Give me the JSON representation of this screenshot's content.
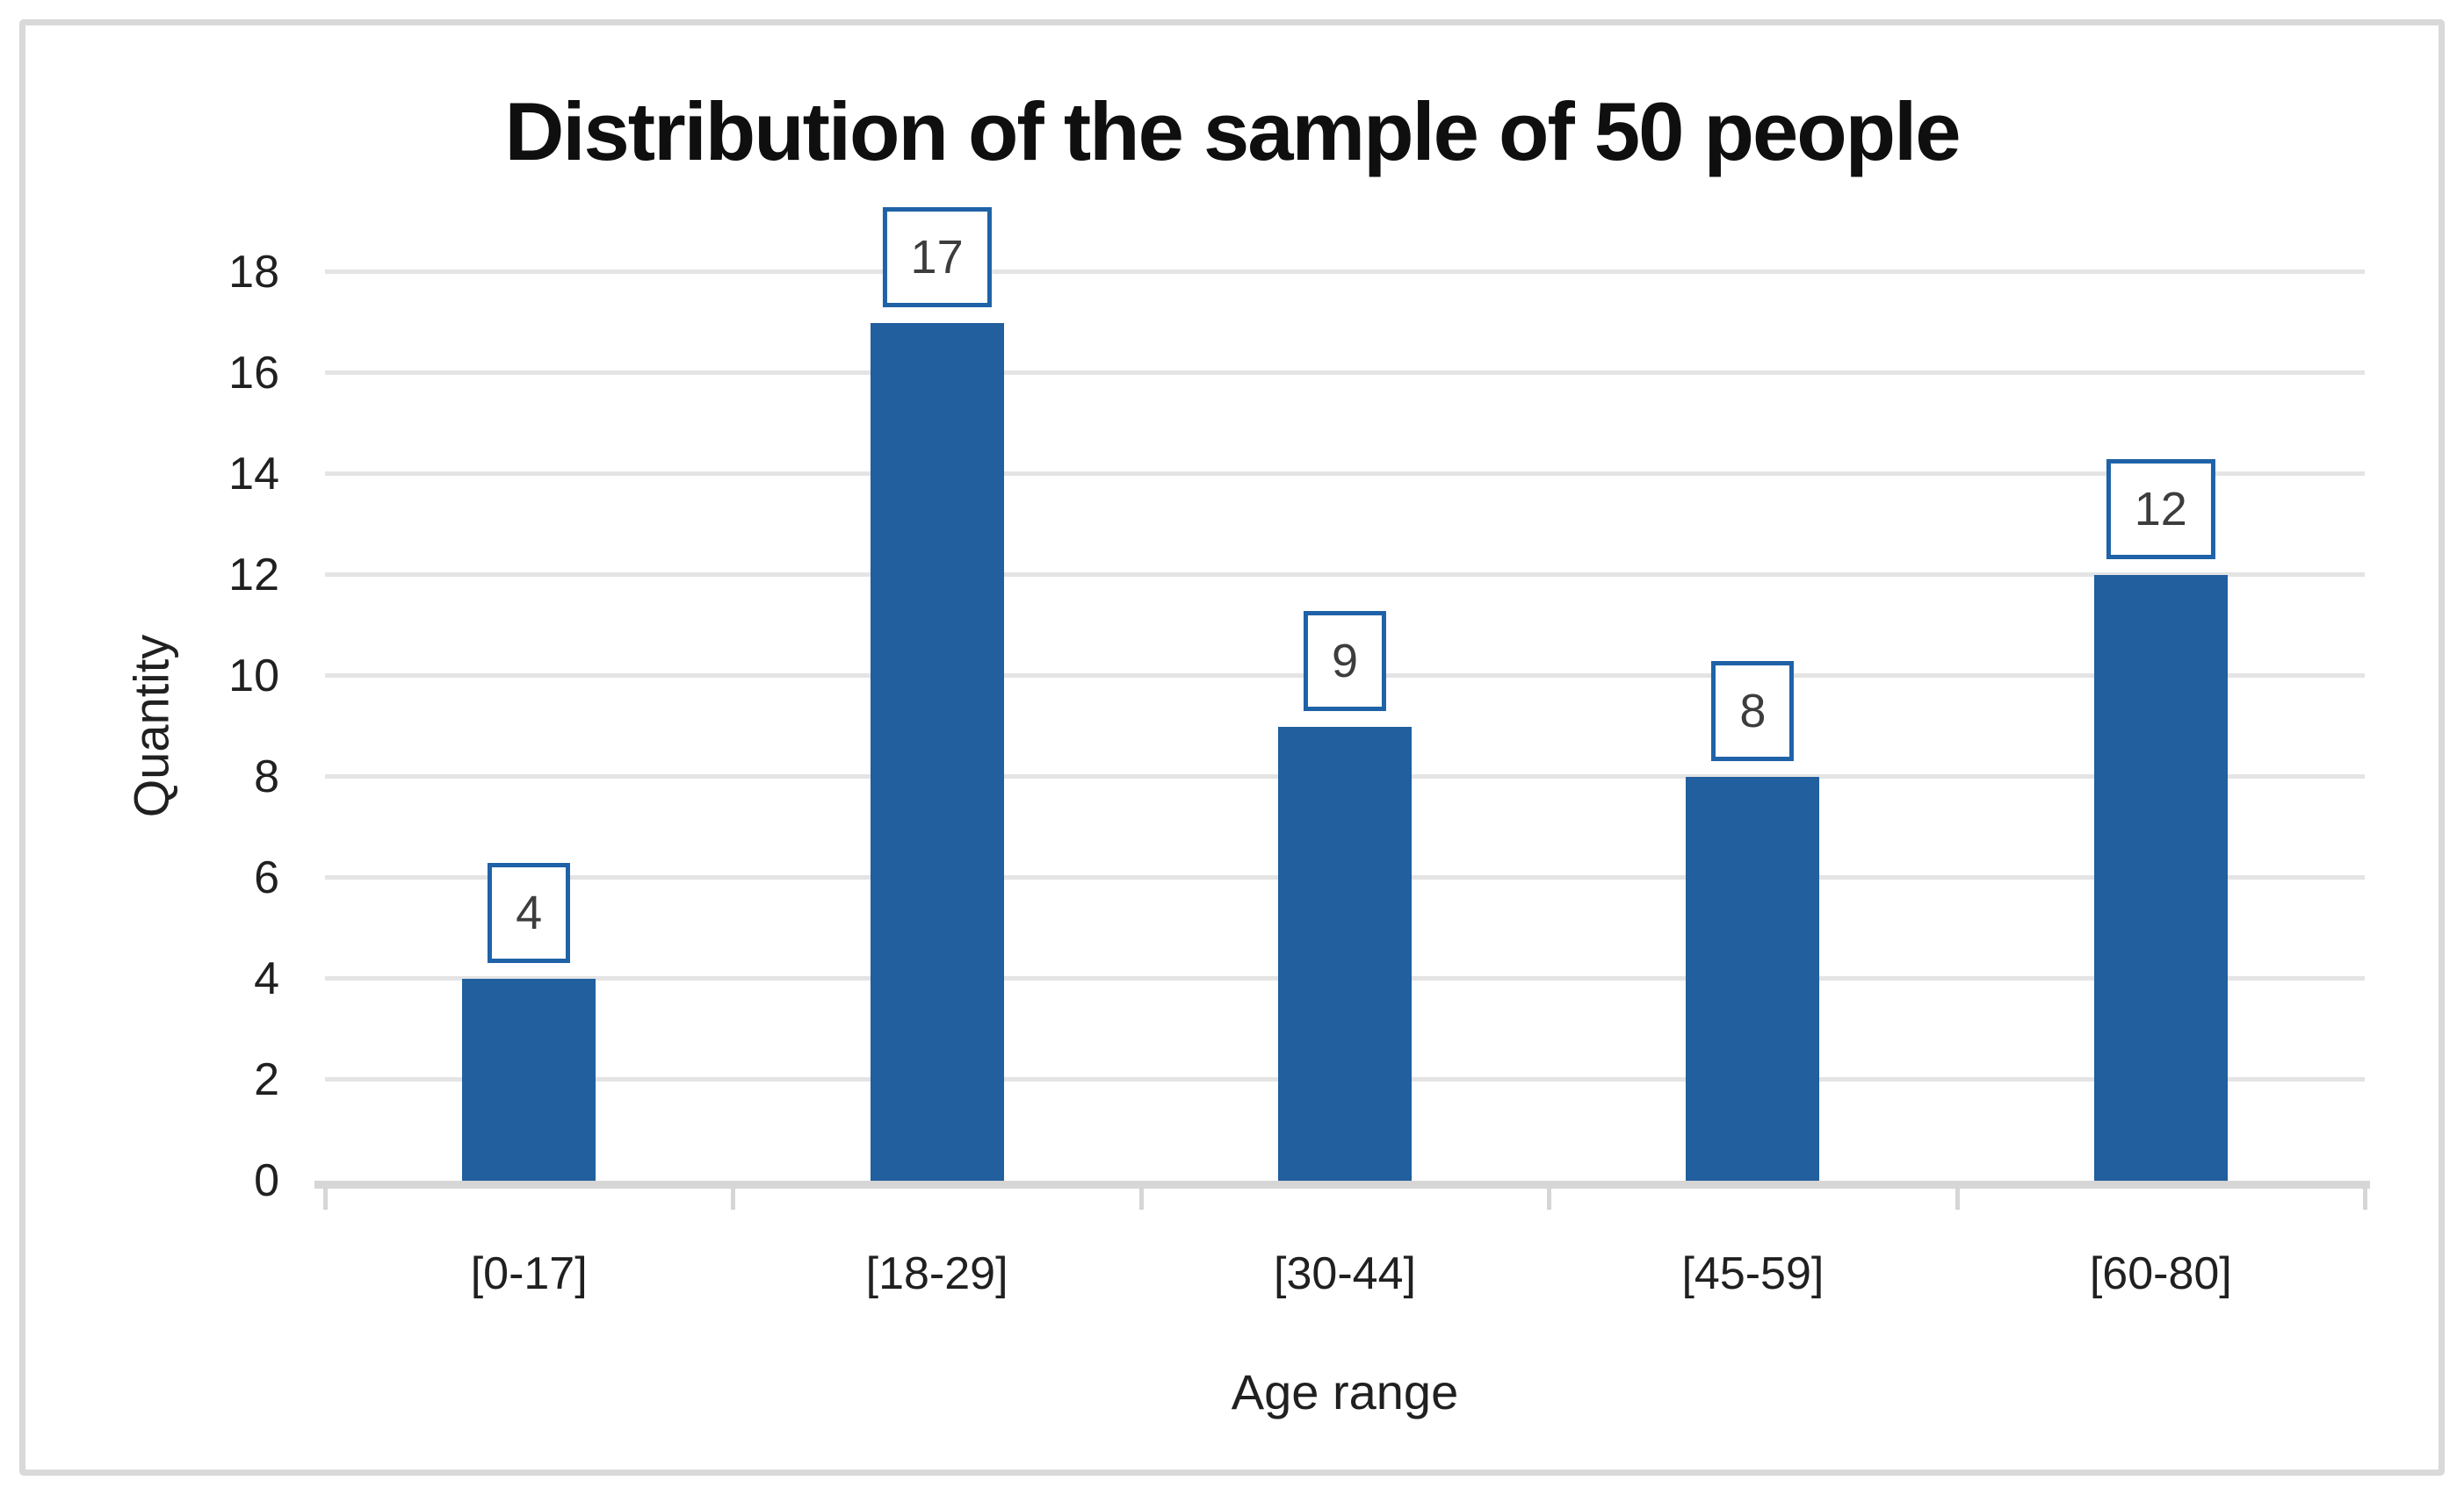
{
  "chart_data": {
    "type": "bar",
    "title": "Distribution of the sample of 50 people",
    "xlabel": "Age range",
    "ylabel": "Quantity",
    "categories": [
      "[0-17]",
      "[18-29]",
      "[30-44]",
      "[45-59]",
      "[60-80]"
    ],
    "values": [
      4,
      17,
      9,
      8,
      12
    ],
    "data_labels": [
      "4",
      "17",
      "9",
      "8",
      "12"
    ],
    "ylim": [
      0,
      18
    ],
    "yticks": [
      0,
      2,
      4,
      6,
      8,
      10,
      12,
      14,
      16,
      18
    ],
    "grid": true,
    "legend": "none",
    "style": {
      "background": "#ffffff",
      "bar_color": "#215f9e",
      "label_box_border_color": "#1f62a7",
      "label_text_color": "#3d3d3d",
      "grid_color": "#e4e4e4",
      "axis_line_color": "#d6d6d6",
      "frame_border_color": "#d9d9d9",
      "title_color": "#0f0f0f",
      "tick_label_color": "#202020"
    }
  }
}
